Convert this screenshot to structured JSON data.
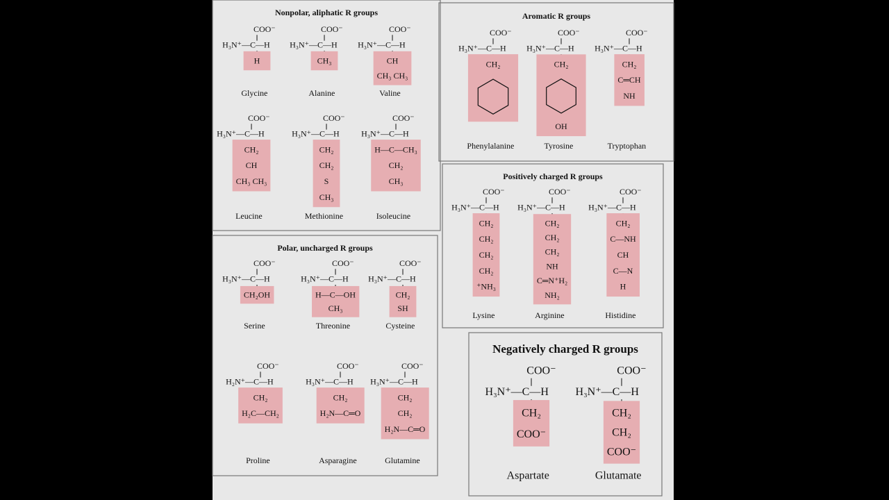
{
  "groups": [
    {
      "title": "Nonpolar, aliphatic R groups",
      "amino_acids": [
        {
          "name": "Glycine",
          "formula": [
            "COO⁻",
            "H₃N⁺—C—H"
          ],
          "r_group": [
            "H"
          ]
        },
        {
          "name": "Alanine",
          "formula": [
            "COO⁻",
            "H₃N⁺—C—H"
          ],
          "r_group": [
            "CH₃"
          ]
        },
        {
          "name": "Valine",
          "formula": [
            "COO⁻",
            "H₃N⁺—C—H"
          ],
          "r_group": [
            "CH",
            "CH₃  CH₃"
          ]
        },
        {
          "name": "Leucine",
          "formula": [
            "COO⁻",
            "H₃N⁺—C—H"
          ],
          "r_group": [
            "CH₂",
            "CH",
            "CH₃  CH₃"
          ]
        },
        {
          "name": "Methionine",
          "formula": [
            "COO⁻",
            "H₃N⁺—C—H"
          ],
          "r_group": [
            "CH₂",
            "CH₂",
            "S",
            "CH₃"
          ]
        },
        {
          "name": "Isoleucine",
          "formula": [
            "COO⁻",
            "H₃N⁺—C—H"
          ],
          "r_group": [
            "H—C—CH₃",
            "CH₂",
            "CH₃"
          ]
        }
      ]
    },
    {
      "title": "Aromatic R groups",
      "amino_acids": [
        {
          "name": "Phenylalanine",
          "formula": [
            "COO⁻",
            "H₃N⁺—C—H"
          ],
          "r_group": [
            "CH₂"
          ]
        },
        {
          "name": "Tyrosine",
          "formula": [
            "COO⁻",
            "H₃N⁺—C—H"
          ],
          "r_group": [
            "CH₂",
            "OH"
          ]
        },
        {
          "name": "Tryptophan",
          "formula": [
            "COO⁻",
            "H₃N⁺—C—H"
          ],
          "r_group": [
            "CH₂",
            "C═CH",
            "NH"
          ]
        }
      ]
    },
    {
      "title": "Positively charged R groups",
      "amino_acids": [
        {
          "name": "Lysine",
          "formula": [
            "COO⁻",
            "H₃N⁺—C—H"
          ],
          "r_group": [
            "CH₂",
            "CH₂",
            "CH₂",
            "CH₂",
            "⁺NH₃"
          ]
        },
        {
          "name": "Arginine",
          "formula": [
            "COO⁻",
            "H₃N⁺—C—H"
          ],
          "r_group": [
            "CH₂",
            "CH₂",
            "CH₂",
            "NH",
            "C═N⁺H₂",
            "NH₂"
          ]
        },
        {
          "name": "Histidine",
          "formula": [
            "COO⁻",
            "H₃N⁺—C—H"
          ],
          "r_group": [
            "CH₂",
            "C—NH",
            "CH",
            "C—N",
            "H"
          ]
        }
      ]
    },
    {
      "title": "Polar, uncharged R groups",
      "amino_acids": [
        {
          "name": "Serine",
          "formula": [
            "COO⁻",
            "H₃N⁺—C—H"
          ],
          "r_group": [
            "CH₂OH"
          ]
        },
        {
          "name": "Threonine",
          "formula": [
            "COO⁻",
            "H₃N⁺—C—H"
          ],
          "r_group": [
            "H—C—OH",
            "CH₃"
          ]
        },
        {
          "name": "Cysteine",
          "formula": [
            "COO⁻",
            "H₃N⁺—C—H"
          ],
          "r_group": [
            "CH₂",
            "SH"
          ]
        },
        {
          "name": "Proline",
          "formula": [
            "COO⁻",
            "H₂N⁺—C—H"
          ],
          "r_group": [
            "CH₂",
            "H₂C—CH₂"
          ]
        },
        {
          "name": "Asparagine",
          "formula": [
            "COO⁻",
            "H₃N⁺—C—H"
          ],
          "r_group": [
            "CH₂",
            "H₂N—C═O"
          ]
        },
        {
          "name": "Glutamine",
          "formula": [
            "COO⁻",
            "H₃N⁺—C—H"
          ],
          "r_group": [
            "CH₂",
            "CH₂",
            "H₂N—C═O"
          ]
        }
      ]
    },
    {
      "title": "Negatively charged R groups",
      "amino_acids": [
        {
          "name": "Aspartate",
          "formula": [
            "COO⁻",
            "H₃N⁺—C—H"
          ],
          "r_group": [
            "CH₂",
            "COO⁻"
          ]
        },
        {
          "name": "Glutamate",
          "formula": [
            "COO⁻",
            "H₃N⁺—C—H"
          ],
          "r_group": [
            "CH₂",
            "CH₂",
            "COO⁻"
          ]
        }
      ]
    }
  ]
}
